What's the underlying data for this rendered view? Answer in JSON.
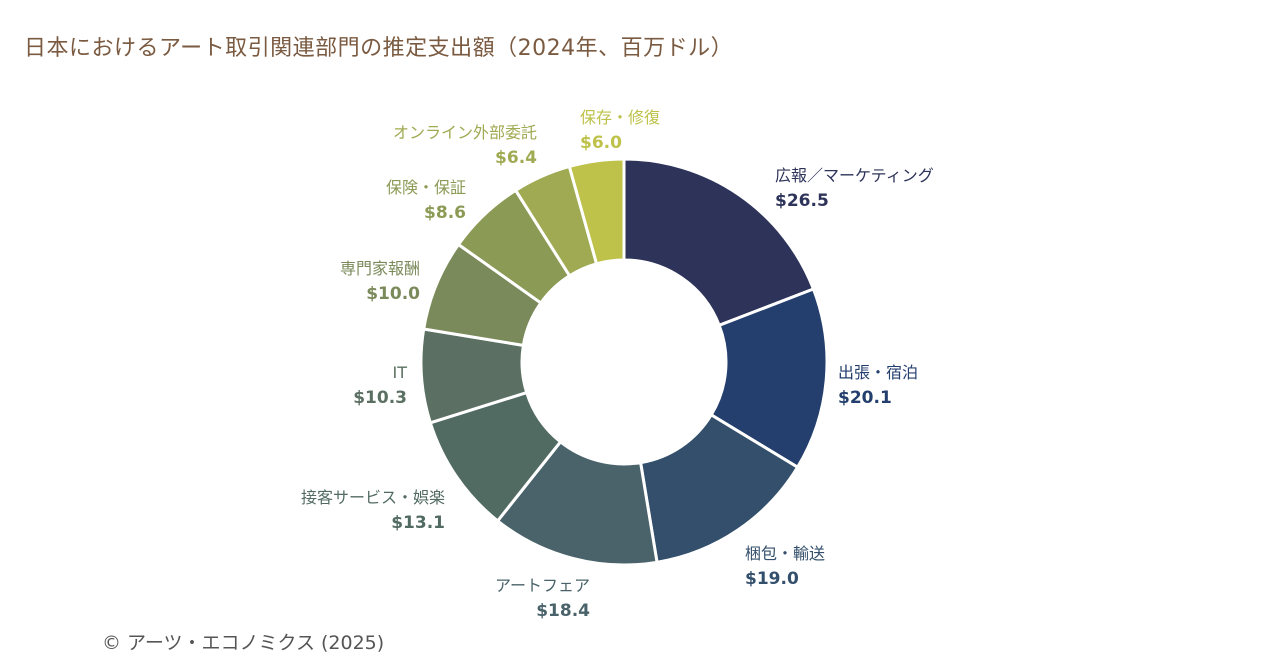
{
  "chart_data": {
    "type": "pie",
    "variant": "donut",
    "title": "日本におけるアート取引関連部門の推定支出額（2024年、百万ドル）",
    "categories": [
      "広報／マーケティング",
      "出張・宿泊",
      "梱包・輸送",
      "アートフェア",
      "接客サービス・娯楽",
      "IT",
      "専門家報酬",
      "保険・保証",
      "オンライン外部委託",
      "保存・修復"
    ],
    "values": [
      26.5,
      20.1,
      19.0,
      18.4,
      13.1,
      10.3,
      10.0,
      8.6,
      6.4,
      6.0
    ],
    "value_labels": [
      "$26.5",
      "$20.1",
      "$19.0",
      "$18.4",
      "$13.1",
      "$10.3",
      "$10.0",
      "$8.6",
      "$6.4",
      "$6.0"
    ],
    "colors": [
      "#2d3359",
      "#243f6d",
      "#334f6b",
      "#4a636b",
      "#526b62",
      "#5b7062",
      "#7b8a5a",
      "#8b9a55",
      "#a0aa52",
      "#bec24a"
    ],
    "start": "12 o'clock",
    "direction": "clockwise"
  },
  "credit": "©  アーツ・エコノミクス (2025)"
}
